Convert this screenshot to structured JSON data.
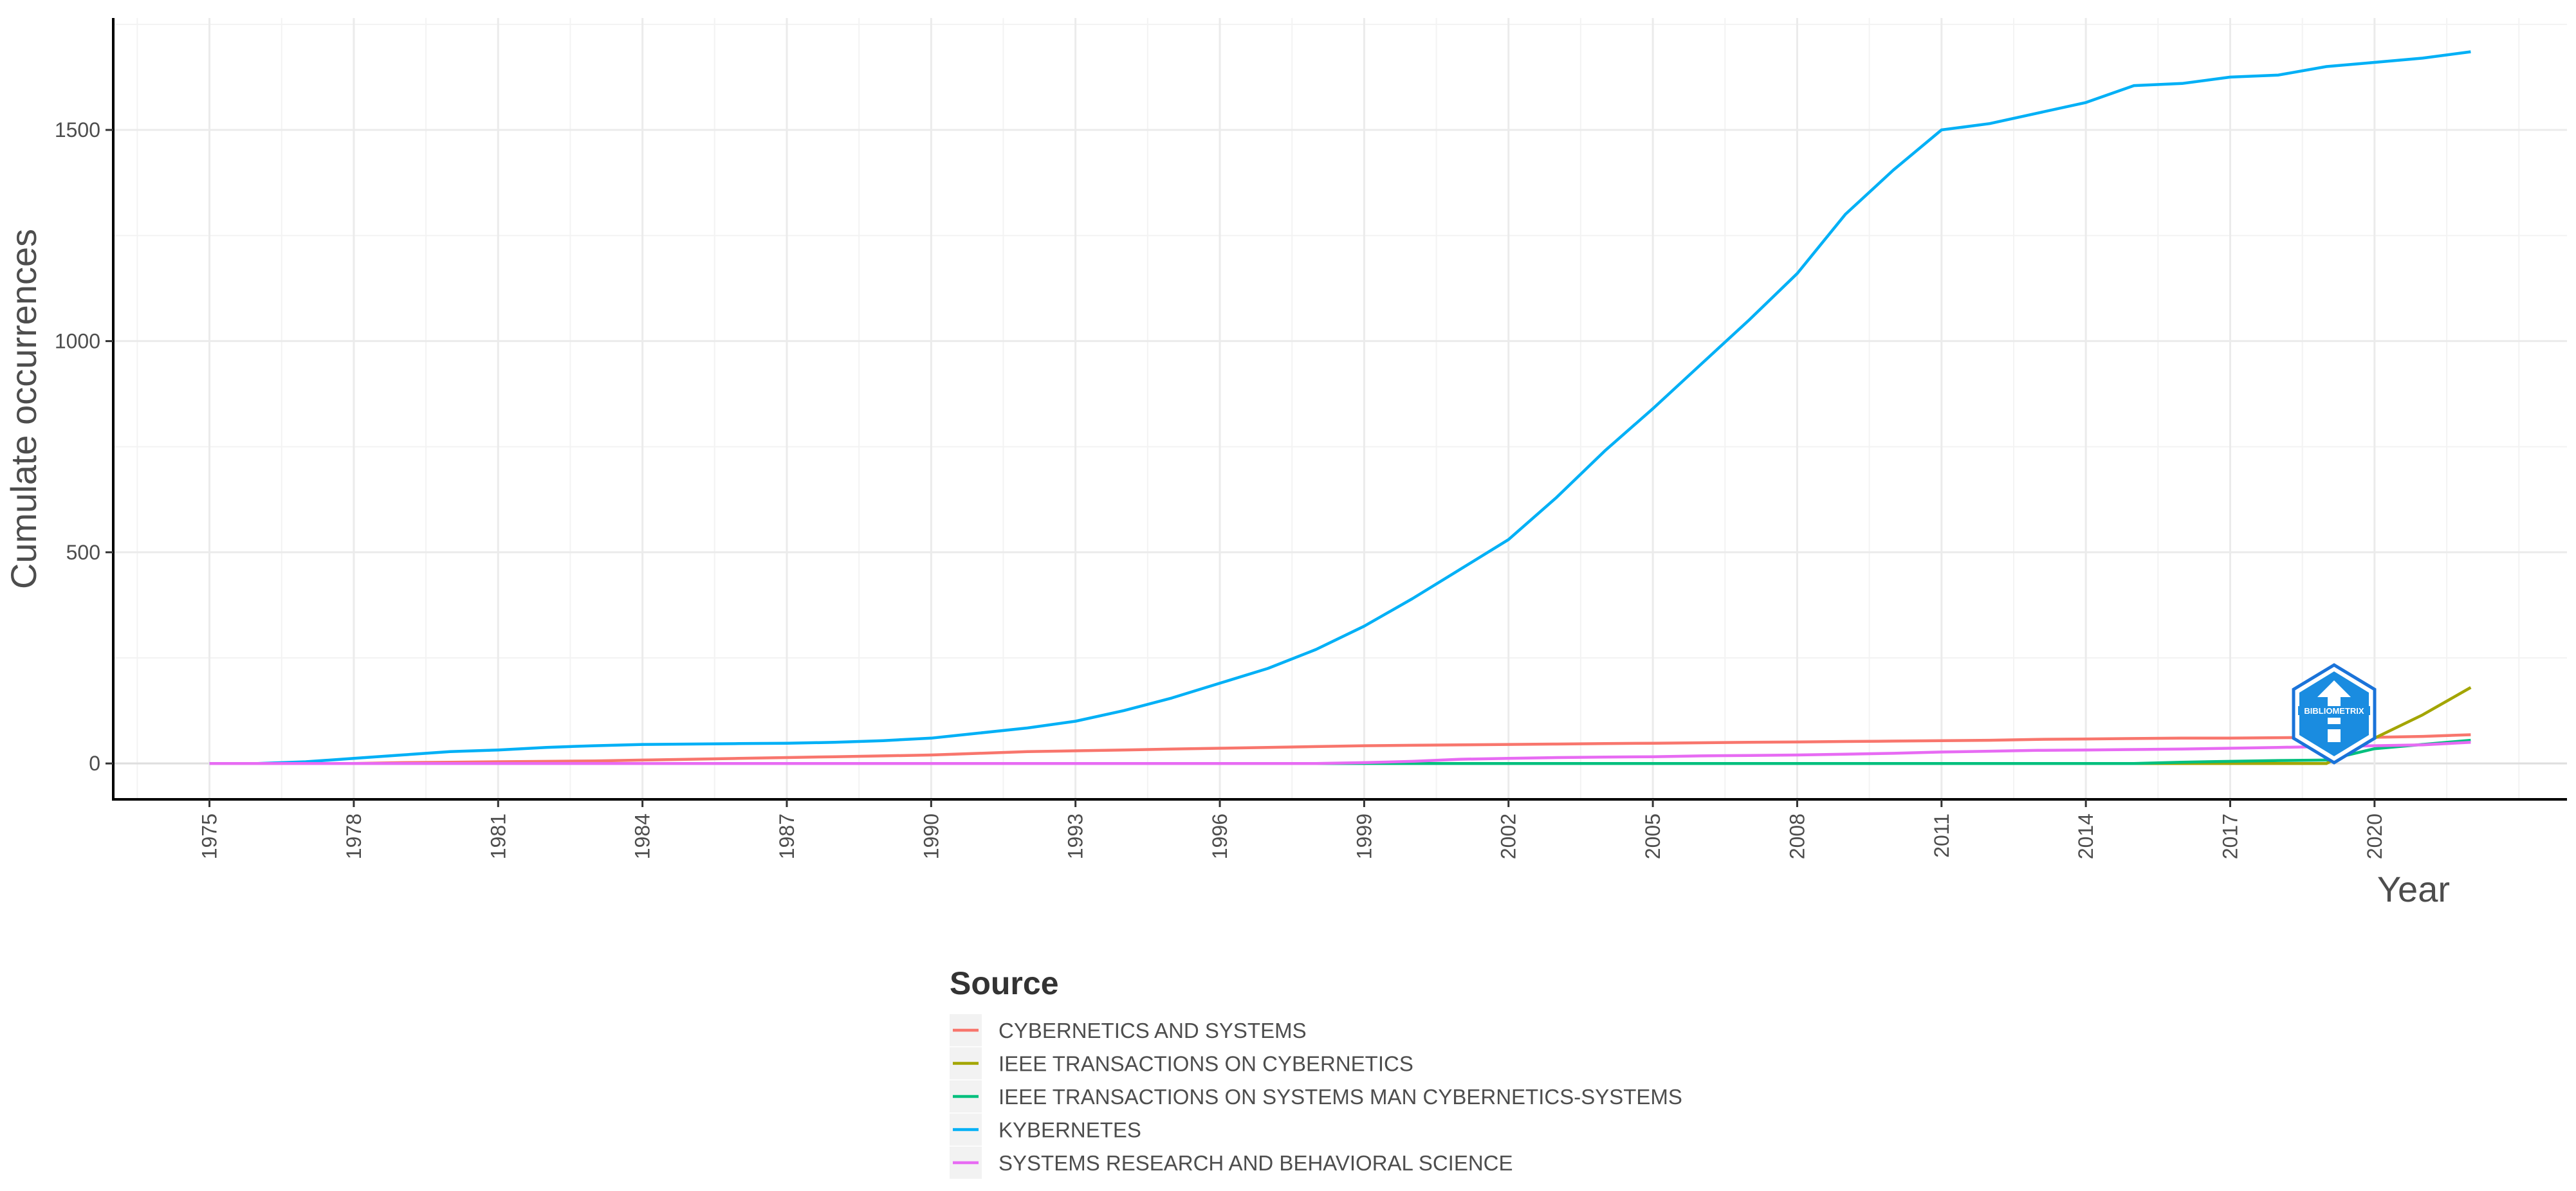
{
  "chart_data": {
    "type": "line",
    "xlabel": "Year",
    "ylabel": "Cumulate occurrences",
    "xlim": [
      1973,
      2024
    ],
    "ylim": [
      -85,
      1765
    ],
    "x_ticks": [
      1975,
      1978,
      1981,
      1984,
      1987,
      1990,
      1993,
      1996,
      1999,
      2002,
      2005,
      2008,
      2011,
      2014,
      2017,
      2020
    ],
    "y_ticks": [
      0,
      500,
      1000,
      1500
    ],
    "grid": true,
    "legend": {
      "title": "Source",
      "placement": "bottom"
    },
    "x": [
      1975,
      1976,
      1977,
      1978,
      1979,
      1980,
      1981,
      1982,
      1983,
      1984,
      1985,
      1986,
      1987,
      1988,
      1989,
      1990,
      1991,
      1992,
      1993,
      1994,
      1995,
      1996,
      1997,
      1998,
      1999,
      2000,
      2001,
      2002,
      2003,
      2004,
      2005,
      2006,
      2007,
      2008,
      2009,
      2010,
      2011,
      2012,
      2013,
      2014,
      2015,
      2016,
      2017,
      2018,
      2019,
      2020,
      2021,
      2022
    ],
    "series": [
      {
        "name": "CYBERNETICS AND SYSTEMS",
        "color": "#F8766D",
        "values": [
          0,
          0,
          0,
          0,
          2,
          3,
          4,
          5,
          6,
          8,
          10,
          12,
          14,
          16,
          18,
          20,
          24,
          28,
          30,
          32,
          34,
          36,
          38,
          40,
          42,
          43,
          44,
          45,
          46,
          47,
          48,
          49,
          50,
          51,
          52,
          53,
          54,
          55,
          57,
          58,
          59,
          60,
          60,
          61,
          62,
          62,
          64,
          68
        ]
      },
      {
        "name": "IEEE TRANSACTIONS ON CYBERNETICS",
        "color": "#A3A500",
        "values": [
          0,
          0,
          0,
          0,
          0,
          0,
          0,
          0,
          0,
          0,
          0,
          0,
          0,
          0,
          0,
          0,
          0,
          0,
          0,
          0,
          0,
          0,
          0,
          0,
          0,
          0,
          0,
          0,
          0,
          0,
          0,
          0,
          0,
          0,
          0,
          0,
          0,
          0,
          0,
          0,
          0,
          0,
          0,
          0,
          0,
          60,
          115,
          180
        ]
      },
      {
        "name": "IEEE TRANSACTIONS ON SYSTEMS MAN CYBERNETICS-SYSTEMS",
        "color": "#00BF7D",
        "values": [
          0,
          0,
          0,
          0,
          0,
          0,
          0,
          0,
          0,
          0,
          0,
          0,
          0,
          0,
          0,
          0,
          0,
          0,
          0,
          0,
          0,
          0,
          0,
          0,
          0,
          0,
          0,
          0,
          0,
          0,
          0,
          0,
          0,
          0,
          0,
          0,
          0,
          0,
          0,
          0,
          0,
          3,
          5,
          7,
          8,
          35,
          45,
          55
        ]
      },
      {
        "name": "KYBERNETES",
        "color": "#00B0F6",
        "values": [
          0,
          0,
          4,
          12,
          20,
          28,
          32,
          38,
          42,
          45,
          46,
          47,
          48,
          50,
          54,
          60,
          72,
          84,
          100,
          125,
          155,
          190,
          225,
          270,
          325,
          390,
          460,
          530,
          630,
          740,
          840,
          945,
          1050,
          1160,
          1300,
          1405,
          1500,
          1515,
          1540,
          1565,
          1605,
          1610,
          1625,
          1630,
          1650,
          1660,
          1670,
          1685
        ]
      },
      {
        "name": "SYSTEMS RESEARCH AND BEHAVIORAL SCIENCE",
        "color": "#E76BF3",
        "values": [
          0,
          0,
          0,
          0,
          0,
          0,
          0,
          0,
          0,
          0,
          0,
          0,
          0,
          0,
          0,
          0,
          0,
          0,
          0,
          0,
          0,
          0,
          0,
          0,
          2,
          5,
          10,
          12,
          14,
          15,
          16,
          18,
          19,
          20,
          22,
          24,
          27,
          29,
          31,
          32,
          33,
          34,
          36,
          38,
          40,
          42,
          44,
          50
        ]
      }
    ]
  }
}
